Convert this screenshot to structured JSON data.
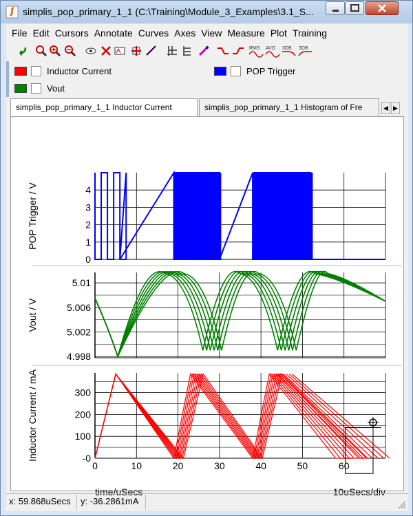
{
  "window": {
    "title": "simplis_pop_primary_1_1 (C:\\Training\\Module_3_Examples\\3.1_S..."
  },
  "menu": [
    "File",
    "Edit",
    "Cursors",
    "Annotate",
    "Curves",
    "Axes",
    "View",
    "Measure",
    "Plot",
    "Training"
  ],
  "toolbar_labels": {
    "rms": "RMS",
    "avg": "AVG",
    "db1": "3DB",
    "db2": "3DB"
  },
  "legend": [
    {
      "label": "Inductor Current",
      "color": "#ff0000"
    },
    {
      "label": "POP Trigger",
      "color": "#0000ff"
    },
    {
      "label": "Vout",
      "color": "#008000"
    }
  ],
  "tabs": [
    {
      "label": "simplis_pop_primary_1_1 Inductor Current",
      "active": true
    },
    {
      "label": "simplis_pop_primary_1_1 Histogram of Fre",
      "active": false
    }
  ],
  "chart_data": [
    {
      "type": "line",
      "ylabel": "POP Trigger / V",
      "series": [
        {
          "name": "POP Trigger",
          "color": "#0000ff"
        }
      ],
      "yticks": [
        "0",
        "1",
        "2",
        "3",
        "4"
      ],
      "ylim": [
        0,
        5
      ],
      "xlim": [
        0,
        70
      ],
      "bursts": [
        [
          0,
          6
        ],
        [
          19,
          30
        ],
        [
          38,
          52
        ]
      ],
      "high_v": 5
    },
    {
      "type": "line",
      "ylabel": "Vout / V",
      "series": [
        {
          "name": "Vout",
          "color": "#008000"
        }
      ],
      "yticks": [
        "4.998",
        "5.002",
        "5.006",
        "5.01"
      ],
      "ytick_values": [
        4.998,
        5.002,
        5.006,
        5.01
      ],
      "ylim": [
        4.9978,
        5.0117
      ],
      "xlim": [
        0,
        70
      ],
      "peak_v": 5.0115,
      "valley_v": 4.998
    },
    {
      "type": "line",
      "ylabel": "Inductor Current / mA",
      "xlabel": "time/uSecs",
      "x_div_label": "10uSecs/div",
      "series": [
        {
          "name": "Inductor Current",
          "color": "#ff0000"
        }
      ],
      "yticks": [
        "-0",
        "100",
        "200",
        "300"
      ],
      "ytick_values": [
        0,
        100,
        200,
        300
      ],
      "xticks": [
        "0",
        "10",
        "20",
        "30",
        "40",
        "50",
        "60"
      ],
      "xtick_values": [
        0,
        10,
        20,
        30,
        40,
        50,
        60
      ],
      "ylim": [
        0,
        390
      ],
      "xlim": [
        0,
        70
      ],
      "peak_ma": 385
    }
  ],
  "status": {
    "x": "x: 59.868uSecs",
    "y": "y: -36.2861mA"
  }
}
